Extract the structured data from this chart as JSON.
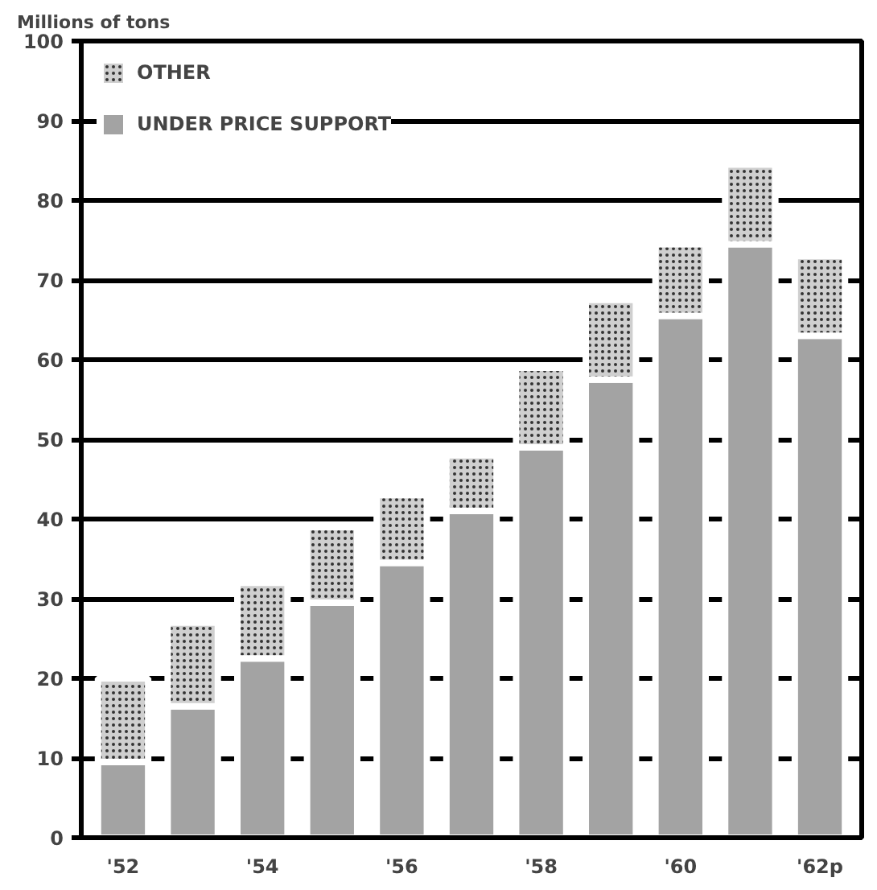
{
  "chart_data": {
    "type": "bar",
    "stacked": true,
    "ylabel": "Millions of tons",
    "categories": [
      "'52",
      null,
      "'54",
      null,
      "'56",
      null,
      "'58",
      null,
      "'60",
      null,
      "'62p"
    ],
    "series": [
      {
        "name": "UNDER PRICE SUPPORT",
        "color": "#a3a3a3",
        "values": [
          9.5,
          16.5,
          22.5,
          29.5,
          34.5,
          41,
          49,
          57.5,
          65.5,
          74.5,
          63
        ]
      },
      {
        "name": "OTHER",
        "color": "#cfcfcf",
        "values": [
          10.5,
          10.5,
          9.5,
          9.5,
          8.5,
          7,
          10,
          10,
          9,
          10,
          10
        ]
      }
    ],
    "ylim": [
      0,
      100
    ],
    "yticks": [
      0,
      10,
      20,
      30,
      40,
      50,
      60,
      70,
      80,
      90,
      100
    ],
    "grid": "y",
    "legend": "top left"
  }
}
